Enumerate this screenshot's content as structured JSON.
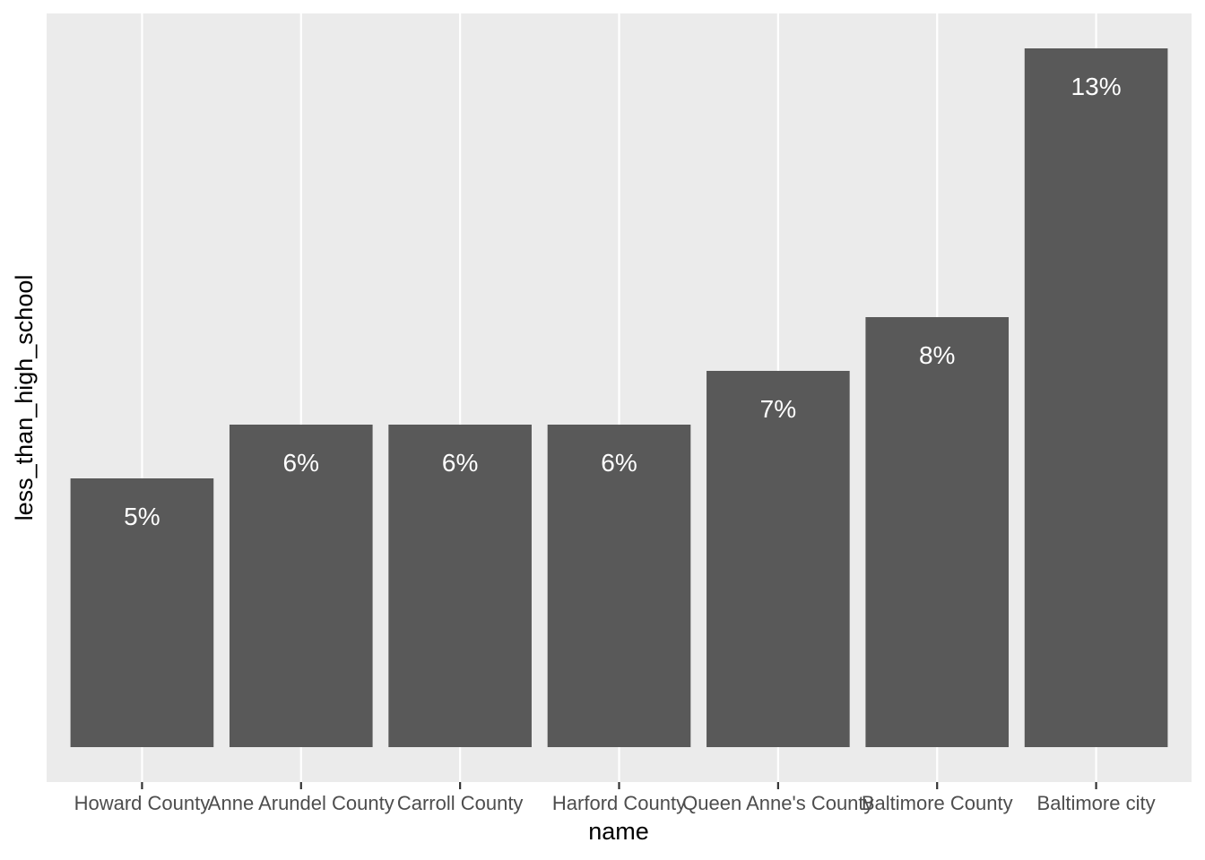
{
  "chart_data": {
    "type": "bar",
    "categories": [
      "Howard County",
      "Anne Arundel County",
      "Carroll County",
      "Harford County",
      "Queen Anne's County",
      "Baltimore County",
      "Baltimore city"
    ],
    "values": [
      5,
      6,
      6,
      6,
      7,
      8,
      13
    ],
    "value_labels": [
      "5%",
      "6%",
      "6%",
      "6%",
      "7%",
      "8%",
      "13%"
    ],
    "xlabel": "name",
    "ylabel": "less_than_high_school",
    "ylim": [
      0,
      13.6
    ],
    "y_ticks_shown": false,
    "grid": true,
    "bar_color": "#595959",
    "panel_color": "#ebebeb",
    "grid_color": "#ffffff",
    "label_color": "#ffffff"
  }
}
